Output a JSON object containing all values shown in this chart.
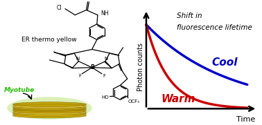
{
  "background_color": "#ffffff",
  "fig_width": 3.78,
  "fig_height": 1.81,
  "dpi": 100,
  "right_panel": {
    "xlabel": "Time",
    "ylabel": "Photon counts",
    "annotation_line1": "Shift in",
    "annotation_line2": "fluorescence lifetime",
    "cool_label": "Cool",
    "warm_label": "Warm",
    "cool_color": "#0000cc",
    "warm_color": "#cc0000",
    "annotation_color": "#000000",
    "cool_tau": 4.0,
    "warm_tau": 1.1,
    "x_max": 5.0,
    "line_width": 2.5
  },
  "left_panel": {
    "er_thermo_label": "ER thermo yellow",
    "myotube_label": "Myotube",
    "er_color": "#000000",
    "myotube_color": "#22bb00",
    "struct_color": "#000000"
  }
}
